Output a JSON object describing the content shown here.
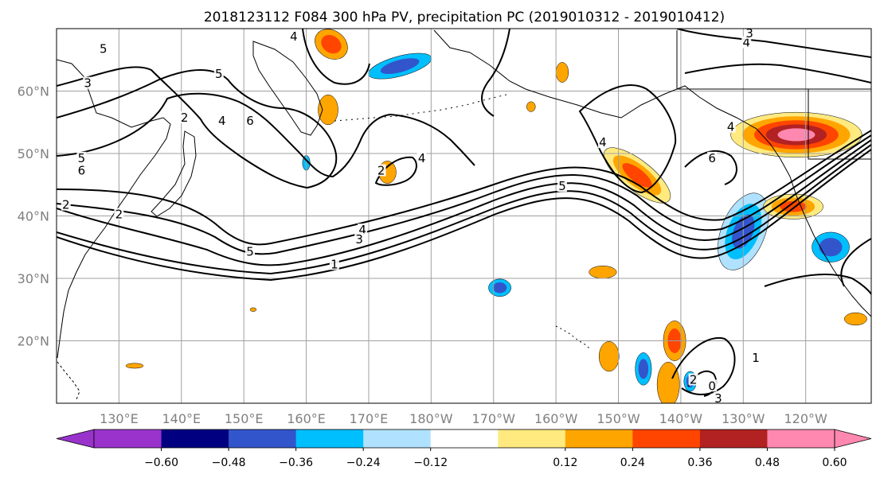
{
  "title": "2018123112 F084 300 hPa PV, precipitation PC (2019010312 - 2019010412)",
  "map": {
    "lon_range": [
      120,
      250.5
    ],
    "lat_range": [
      10,
      70
    ],
    "gridlines": true,
    "lon_ticks": [
      {
        "lon": 130,
        "label": "130°E"
      },
      {
        "lon": 140,
        "label": "140°E"
      },
      {
        "lon": 150,
        "label": "150°E"
      },
      {
        "lon": 160,
        "label": "160°E"
      },
      {
        "lon": 170,
        "label": "170°E"
      },
      {
        "lon": 180,
        "label": "180°W"
      },
      {
        "lon": 190,
        "label": "170°W"
      },
      {
        "lon": 200,
        "label": "160°W"
      },
      {
        "lon": 210,
        "label": "150°W"
      },
      {
        "lon": 220,
        "label": "140°W"
      },
      {
        "lon": 230,
        "label": "130°W"
      },
      {
        "lon": 240,
        "label": "120°W"
      }
    ],
    "lat_ticks": [
      {
        "lat": 20,
        "label": "20°N"
      },
      {
        "lat": 30,
        "label": "30°N"
      },
      {
        "lat": 40,
        "label": "40°N"
      },
      {
        "lat": 50,
        "label": "50°N"
      },
      {
        "lat": 60,
        "label": "60°N"
      }
    ]
  },
  "colorbar": {
    "colors": [
      "#9933cc",
      "#000080",
      "#3355cc",
      "#00bfff",
      "#b0e2ff",
      "#ffffff",
      "#ffea80",
      "#ffa500",
      "#ff4500",
      "#b22222",
      "#ff88b0",
      "#ff88b0"
    ],
    "labels": [
      "−0.60",
      "−0.48",
      "−0.36",
      "−0.24",
      "−0.12",
      "0.12",
      "0.24",
      "0.36",
      "0.48",
      "0.60"
    ]
  },
  "contour_labels": [
    {
      "text": "5",
      "lon": 127.5,
      "lat": 66.5
    },
    {
      "text": "3",
      "lon": 125,
      "lat": 61
    },
    {
      "text": "5",
      "lon": 146,
      "lat": 62.5
    },
    {
      "text": "2",
      "lon": 140.5,
      "lat": 55.5
    },
    {
      "text": "4",
      "lon": 146.5,
      "lat": 55
    },
    {
      "text": "6",
      "lon": 151,
      "lat": 55
    },
    {
      "text": "5",
      "lon": 124,
      "lat": 49
    },
    {
      "text": "6",
      "lon": 124,
      "lat": 47
    },
    {
      "text": "2",
      "lon": 121.5,
      "lat": 41.5
    },
    {
      "text": "2",
      "lon": 130,
      "lat": 40
    },
    {
      "text": "5",
      "lon": 151,
      "lat": 34
    },
    {
      "text": "4",
      "lon": 169,
      "lat": 37.5
    },
    {
      "text": "3",
      "lon": 168.5,
      "lat": 36
    },
    {
      "text": "1",
      "lon": 164.5,
      "lat": 32
    },
    {
      "text": "2",
      "lon": 172,
      "lat": 47
    },
    {
      "text": "4",
      "lon": 178.5,
      "lat": 49
    },
    {
      "text": "4",
      "lon": 207.5,
      "lat": 51.5
    },
    {
      "text": "5",
      "lon": 201,
      "lat": 44.5
    },
    {
      "text": "6",
      "lon": 225,
      "lat": 49
    },
    {
      "text": "4",
      "lon": 228,
      "lat": 54
    },
    {
      "text": "4",
      "lon": 230.5,
      "lat": 67.5
    },
    {
      "text": "3",
      "lon": 231,
      "lat": 69
    },
    {
      "text": "1",
      "lon": 232,
      "lat": 17
    },
    {
      "text": "2",
      "lon": 222,
      "lat": 13.5
    },
    {
      "text": "0",
      "lon": 225,
      "lat": 12.5
    },
    {
      "text": "3",
      "lon": 226,
      "lat": 10.5
    },
    {
      "text": "4",
      "lon": 158,
      "lat": 68.5
    }
  ],
  "precip_patches": [
    {
      "lon": 164,
      "lat": 67.5,
      "rx": 2.8,
      "ry": 2.2,
      "rot": 35,
      "levels": [
        "#ffa500",
        "#ff4500"
      ]
    },
    {
      "lon": 175,
      "lat": 64,
      "rx": 5.2,
      "ry": 1.6,
      "rot": -15,
      "levels": [
        "#00bfff",
        "#3355cc"
      ]
    },
    {
      "lon": 201,
      "lat": 63,
      "rx": 1.0,
      "ry": 1.6,
      "rot": 0,
      "levels": [
        "#ffa500"
      ]
    },
    {
      "lon": 163.5,
      "lat": 57,
      "rx": 1.6,
      "ry": 2.4,
      "rot": 0,
      "levels": [
        "#ffa500"
      ]
    },
    {
      "lon": 196,
      "lat": 57.5,
      "rx": 0.7,
      "ry": 0.8,
      "rot": 0,
      "levels": [
        "#ffa500"
      ]
    },
    {
      "lon": 160,
      "lat": 48.5,
      "rx": 0.6,
      "ry": 1.2,
      "rot": 0,
      "levels": [
        "#00bfff"
      ]
    },
    {
      "lon": 173,
      "lat": 47,
      "rx": 1.4,
      "ry": 1.8,
      "rot": 0,
      "levels": [
        "#ffa500"
      ]
    },
    {
      "lon": 213,
      "lat": 46.5,
      "rx": 6.5,
      "ry": 2.4,
      "rot": 38,
      "levels": [
        "#ffea80",
        "#ffa500",
        "#ff4500"
      ]
    },
    {
      "lon": 238.5,
      "lat": 53,
      "rx": 10.5,
      "ry": 3.6,
      "rot": 0,
      "levels": [
        "#ffea80",
        "#ffa500",
        "#ff4500",
        "#b22222",
        "#ff88b0"
      ]
    },
    {
      "lon": 230,
      "lat": 37.5,
      "rx": 3.5,
      "ry": 6.5,
      "rot": 22,
      "levels": [
        "#b0e2ff",
        "#00bfff",
        "#3355cc"
      ]
    },
    {
      "lon": 238,
      "lat": 41.5,
      "rx": 4.8,
      "ry": 2.0,
      "rot": 0,
      "levels": [
        "#ffea80",
        "#ffa500",
        "#ff4500"
      ]
    },
    {
      "lon": 244,
      "lat": 35,
      "rx": 3.0,
      "ry": 2.4,
      "rot": 0,
      "levels": [
        "#00bfff",
        "#3355cc"
      ]
    },
    {
      "lon": 248,
      "lat": 23.5,
      "rx": 1.8,
      "ry": 1.0,
      "rot": 0,
      "levels": [
        "#ffa500"
      ]
    },
    {
      "lon": 191,
      "lat": 28.5,
      "rx": 1.8,
      "ry": 1.4,
      "rot": 0,
      "levels": [
        "#00bfff",
        "#3355cc"
      ]
    },
    {
      "lon": 207.5,
      "lat": 31,
      "rx": 2.2,
      "ry": 1.0,
      "rot": 0,
      "levels": [
        "#ffa500"
      ]
    },
    {
      "lon": 219,
      "lat": 20,
      "rx": 1.8,
      "ry": 3.2,
      "rot": 0,
      "levels": [
        "#ffa500",
        "#ff4500"
      ]
    },
    {
      "lon": 218,
      "lat": 13,
      "rx": 1.8,
      "ry": 3.6,
      "rot": 0,
      "levels": [
        "#ffa500"
      ]
    },
    {
      "lon": 208.5,
      "lat": 17.5,
      "rx": 1.6,
      "ry": 2.4,
      "rot": 0,
      "levels": [
        "#ffa500"
      ]
    },
    {
      "lon": 214,
      "lat": 15.5,
      "rx": 1.3,
      "ry": 2.6,
      "rot": 0,
      "levels": [
        "#00bfff",
        "#3355cc"
      ]
    },
    {
      "lon": 221.5,
      "lat": 13.5,
      "rx": 1.0,
      "ry": 1.6,
      "rot": 0,
      "levels": [
        "#00bfff",
        "#3355cc"
      ]
    },
    {
      "lon": 132.5,
      "lat": 16,
      "rx": 1.4,
      "ry": 0.4,
      "rot": 0,
      "levels": [
        "#ffa500"
      ]
    },
    {
      "lon": 151.5,
      "lat": 25,
      "rx": 0.5,
      "ry": 0.3,
      "rot": 0,
      "levels": [
        "#ffa500"
      ]
    }
  ]
}
